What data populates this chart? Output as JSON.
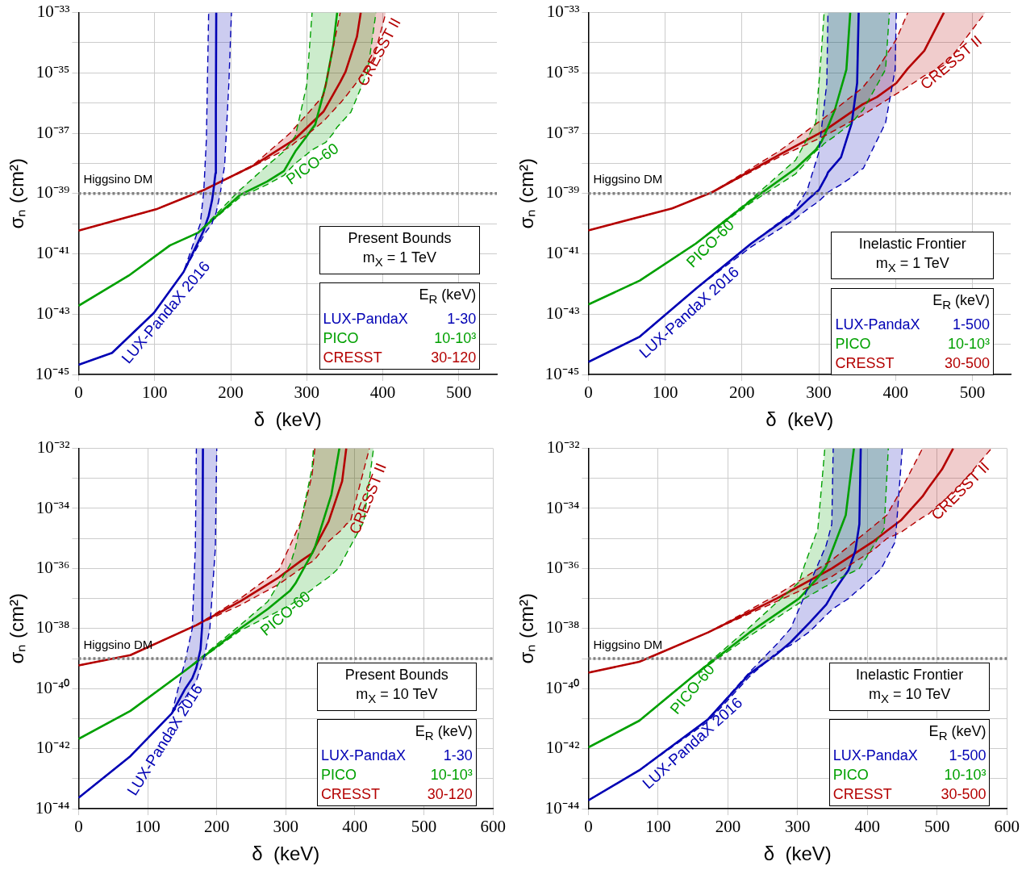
{
  "chart_data": [
    {
      "type": "line",
      "xlabel": "δ  (keV)",
      "ylabel": "σₙ (cm²)",
      "log": "y",
      "grid": true,
      "xlim": [
        0,
        550
      ],
      "xticks": [
        0,
        100,
        200,
        300,
        400,
        500
      ],
      "ylim": [
        1e-45,
        1e-33
      ],
      "yticks": [
        {
          "value": 1e-45,
          "label": "10⁻⁴⁵"
        },
        {
          "value": 1e-44,
          "label": null
        },
        {
          "value": 1e-43,
          "label": "10⁻⁴³"
        },
        {
          "value": 1e-42,
          "label": null
        },
        {
          "value": 1e-41,
          "label": "10⁻⁴¹"
        },
        {
          "value": 1e-40,
          "label": null
        },
        {
          "value": 1e-39,
          "label": "10⁻³⁹"
        },
        {
          "value": 1e-38,
          "label": null
        },
        {
          "value": 1e-37,
          "label": "10⁻³⁷"
        },
        {
          "value": 1e-36,
          "label": null
        },
        {
          "value": 1e-35,
          "label": "10⁻³⁵"
        },
        {
          "value": 1e-34,
          "label": null
        },
        {
          "value": 1e-33,
          "label": "10⁻³³"
        }
      ],
      "series": [
        {
          "name": "LUX-PandaX 2016",
          "color": "#0000b4",
          "x": [
            0,
            44,
            99,
            138,
            160,
            164.5,
            168,
            171,
            175.5,
            177,
            180,
            180.5,
            181,
            186.5,
            192,
            197.5,
            201
          ],
          "values": [
            2.1e-45,
            5.2e-45,
            1.1e-43,
            2.5e-42,
            3.4e-41,
            6e-41,
            1.1e-40,
            1.8e-40,
            6e-40,
            1.1e-39,
            4.7e-39,
            5e-37,
            1e-33,
            null,
            null,
            null,
            null
          ],
          "upper": [
            2.1e-45,
            5.2e-45,
            1.1e-43,
            2.5e-42,
            1e-40,
            1.1e-39,
            6e-38,
            1e-33,
            1e-33,
            1e-33,
            1e-33,
            1e-33,
            1e-33,
            1e-33,
            1e-33,
            1e-33,
            1e-33
          ],
          "lower": [
            2.1e-45,
            5.2e-45,
            1.1e-43,
            2.5e-42,
            2.5e-41,
            4e-41,
            5.6e-41,
            7e-41,
            1e-40,
            1.4e-40,
            2e-40,
            2.2e-40,
            2.4e-40,
            1.1e-39,
            8.5e-39,
            4e-36,
            1e-33
          ]
        },
        {
          "name": "PICO-60",
          "color": "#00a000",
          "x": [
            0,
            66,
            120,
            157,
            212,
            248,
            270,
            285,
            300,
            307,
            311,
            325,
            335,
            340,
            358,
            380,
            391
          ],
          "values": [
            1.9e-43,
            1.9e-42,
            1.9e-41,
            5e-41,
            8.9e-40,
            2.5e-39,
            5.6e-39,
            2.5e-38,
            8e-38,
            1.4e-37,
            1.9e-37,
            4e-36,
            8.5e-35,
            1e-33,
            null,
            null,
            null
          ],
          "upper": [
            1.9e-43,
            1.9e-42,
            1.9e-41,
            5e-41,
            1.3e-39,
            8.5e-39,
            2.5e-38,
            8e-38,
            4e-36,
            1e-33,
            1e-33,
            1e-33,
            1e-33,
            1e-33,
            1e-33,
            1e-33,
            1e-33
          ],
          "lower": [
            1.9e-43,
            1.9e-42,
            1.9e-41,
            5e-41,
            7.4e-40,
            2e-39,
            4e-39,
            1e-38,
            2e-38,
            2.8e-38,
            3.2e-38,
            5e-38,
            1e-37,
            1.6e-37,
            5e-37,
            1.1e-35,
            1e-33
          ]
        },
        {
          "name": "CRESST II",
          "color": "#b40000",
          "x": [
            0,
            102,
            164.5,
            230,
            278,
            285,
            303,
            322,
            344,
            351,
            366,
            371,
            388,
            404
          ],
          "values": [
            5.9e-41,
            3e-40,
            1.3e-39,
            8.5e-39,
            5e-38,
            6.6e-38,
            1.8e-37,
            5.2e-37,
            5e-36,
            1.1e-35,
            1.6e-34,
            1e-33,
            null,
            null
          ],
          "upper": [
            5.9e-41,
            3e-40,
            1.3e-39,
            9e-39,
            1e-37,
            1.6e-37,
            5e-37,
            1.8e-36,
            1e-33,
            1e-33,
            1e-33,
            1e-33,
            1e-33,
            1e-33
          ],
          "lower": [
            5.9e-41,
            3e-40,
            1.3e-39,
            8e-39,
            3.5e-38,
            5e-38,
            1e-37,
            2.5e-37,
            1e-36,
            1.6e-36,
            5e-36,
            8e-36,
            3e-35,
            1e-33
          ]
        },
        {
          "color": "#0000b4",
          "line_style": "dashed",
          "x": [
            0,
            44,
            99,
            138,
            160,
            164.5,
            168,
            171
          ],
          "values": [
            2.1e-45,
            5.2e-45,
            1.1e-43,
            2.5e-42,
            1e-40,
            1.1e-39,
            6e-38,
            1e-33
          ]
        },
        {
          "color": "#0000b4",
          "line_style": "dashed",
          "x": [
            0,
            44,
            99,
            138,
            160,
            164.5,
            168,
            171,
            175.5,
            177,
            180,
            180.5,
            181,
            186.5,
            192,
            197.5,
            201
          ],
          "values": [
            2.1e-45,
            5.2e-45,
            1.1e-43,
            2.5e-42,
            2.5e-41,
            4e-41,
            5.6e-41,
            7e-41,
            1e-40,
            1.4e-40,
            2e-40,
            2.2e-40,
            2.4e-40,
            1.1e-39,
            8.5e-39,
            4e-36,
            1e-33
          ]
        },
        {
          "color": "#00a000",
          "line_style": "dashed",
          "x": [
            0,
            66,
            120,
            157,
            212,
            248,
            270,
            285,
            300,
            307
          ],
          "values": [
            1.9e-43,
            1.9e-42,
            1.9e-41,
            5e-41,
            1.3e-39,
            8.5e-39,
            2.5e-38,
            8e-38,
            4e-36,
            1e-33
          ]
        },
        {
          "color": "#00a000",
          "line_style": "dashed",
          "x": [
            0,
            66,
            120,
            157,
            212,
            248,
            270,
            285,
            300,
            307,
            311,
            325,
            335,
            340,
            358,
            380,
            391
          ],
          "values": [
            1.9e-43,
            1.9e-42,
            1.9e-41,
            5e-41,
            7.4e-40,
            2e-39,
            4e-39,
            1e-38,
            2e-38,
            2.8e-38,
            3.2e-38,
            5e-38,
            1e-37,
            1.6e-37,
            5e-37,
            1.1e-35,
            1e-33
          ]
        },
        {
          "color": "#b40000",
          "line_style": "dashed",
          "x": [
            0,
            102,
            164.5,
            230,
            278,
            285,
            303,
            322,
            344
          ],
          "values": [
            5.9e-41,
            3e-40,
            1.3e-39,
            9e-39,
            1e-37,
            1.6e-37,
            5e-37,
            1.8e-36,
            1e-33
          ]
        },
        {
          "color": "#b40000",
          "line_style": "dashed",
          "x": [
            0,
            102,
            164.5,
            230,
            278,
            285,
            303,
            322,
            344,
            351,
            366,
            371,
            388,
            404
          ],
          "values": [
            5.9e-41,
            3e-40,
            1.3e-39,
            8e-39,
            3.5e-38,
            5e-38,
            1e-37,
            2.5e-37,
            1e-36,
            1.6e-36,
            5e-36,
            8e-36,
            3e-35,
            1e-33
          ]
        }
      ],
      "ref_lines": [
        {
          "axis": "y",
          "value": 1e-39,
          "label": "Higgsino DM",
          "color": "#808080",
          "line_style": "dotted"
        }
      ],
      "annotations": [
        "Present Bounds",
        "m$_{X}$ = 1 TeV",
        "E$_{R}$ (keV)",
        "LUX-PandaX",
        "1-30",
        "PICO",
        "10-10³",
        "CRESST",
        "30-120"
      ]
    },
    {
      "type": "line",
      "xlabel": "δ  (keV)",
      "ylabel": "σₙ (cm²)",
      "log": "y",
      "grid": true,
      "xlim": [
        0,
        550
      ],
      "xticks": [
        0,
        100,
        200,
        300,
        400,
        500
      ],
      "ylim": [
        1e-45,
        1e-33
      ],
      "yticks": [
        {
          "value": 1e-45,
          "label": "10⁻⁴⁵"
        },
        {
          "value": 1e-44,
          "label": null
        },
        {
          "value": 1e-43,
          "label": "10⁻⁴³"
        },
        {
          "value": 1e-42,
          "label": null
        },
        {
          "value": 1e-41,
          "label": "10⁻⁴¹"
        },
        {
          "value": 1e-40,
          "label": null
        },
        {
          "value": 1e-39,
          "label": "10⁻³⁹"
        },
        {
          "value": 1e-38,
          "label": null
        },
        {
          "value": 1e-37,
          "label": "10⁻³⁷"
        },
        {
          "value": 1e-36,
          "label": null
        },
        {
          "value": 1e-35,
          "label": "10⁻³⁵"
        },
        {
          "value": 1e-34,
          "label": null
        },
        {
          "value": 1e-33,
          "label": "10⁻³³"
        }
      ],
      "series": [
        {
          "name": "LUX-PandaX 2016",
          "color": "#0000b4",
          "x": [
            0,
            67,
            140,
            212,
            267,
            285,
            300,
            310.5,
            312,
            329,
            343,
            350,
            352,
            358,
            387,
            399.5,
            401
          ],
          "values": [
            2.6e-45,
            1.8e-44,
            7e-43,
            2.2e-41,
            2.2e-40,
            6e-40,
            1.3e-39,
            4e-39,
            5e-39,
            1.6e-38,
            2.2e-37,
            4.6e-36,
            1e-33,
            null,
            null,
            null,
            null
          ],
          "upper": [
            2.6e-45,
            1.8e-44,
            7e-43,
            2.2e-41,
            2.5e-40,
            1.3e-39,
            2.3e-38,
            4.6e-36,
            1e-33,
            1e-33,
            1e-33,
            1e-33,
            1e-33,
            1e-33,
            1e-33,
            1e-33,
            1e-33
          ],
          "lower": [
            2.6e-45,
            1.8e-44,
            7e-43,
            1.7e-41,
            1.3e-40,
            3e-40,
            5.5e-40,
            1e-39,
            1.1e-39,
            2e-39,
            3.5e-39,
            5e-39,
            5.5e-39,
            6.8e-39,
            2.2e-37,
            1.3e-35,
            1e-33
          ]
        },
        {
          "name": "PICO-60",
          "color": "#00a000",
          "x": [
            0,
            67,
            140,
            212,
            270,
            296,
            303,
            307,
            321,
            336,
            341,
            358,
            387,
            392
          ],
          "values": [
            2.1e-43,
            1.3e-42,
            2.2e-41,
            5.9e-40,
            6.8e-39,
            2.8e-38,
            5e-38,
            8e-38,
            6e-37,
            1.3e-35,
            1e-33,
            null,
            null,
            null
          ],
          "upper": [
            2.1e-43,
            1.3e-42,
            2.2e-41,
            6.5e-40,
            1.3e-38,
            2.2e-37,
            3.5e-35,
            1e-33,
            1e-33,
            1e-33,
            1e-33,
            1e-33,
            1e-33,
            1e-33
          ],
          "lower": [
            2.1e-43,
            1.3e-42,
            2.2e-41,
            5e-40,
            4.5e-39,
            2.5e-38,
            3.5e-38,
            4.5e-38,
            8e-38,
            1.6e-37,
            2e-37,
            6e-37,
            1.3e-35,
            1e-33
          ]
        },
        {
          "name": "CRESST II",
          "color": "#b40000",
          "x": [
            0,
            109,
            161,
            248,
            307,
            357,
            376,
            401,
            416,
            437.5,
            463,
            466,
            517
          ],
          "values": [
            6e-41,
            3.2e-40,
            1.1e-39,
            1.9e-38,
            1.2e-37,
            9e-37,
            1.6e-36,
            4.6e-36,
            1.4e-35,
            5.4e-35,
            1e-33,
            null,
            null
          ],
          "upper": [
            6e-41,
            3.2e-40,
            1.1e-39,
            2.5e-38,
            3.2e-37,
            3.2e-36,
            1.3e-35,
            1.3e-34,
            1e-33,
            1e-33,
            1e-33,
            1e-33,
            1e-33
          ],
          "lower": [
            6e-41,
            3.2e-40,
            1.1e-39,
            1.6e-38,
            8e-38,
            4e-37,
            8e-37,
            2e-36,
            3.5e-36,
            8e-36,
            1.8e-35,
            2e-35,
            1e-33
          ]
        },
        {
          "color": "#0000b4",
          "line_style": "dashed",
          "x": [
            0,
            67,
            140,
            212,
            267,
            285,
            300,
            310.5,
            312
          ],
          "values": [
            2.6e-45,
            1.8e-44,
            7e-43,
            2.2e-41,
            2.5e-40,
            1.3e-39,
            2.3e-38,
            4.6e-36,
            1e-33
          ]
        },
        {
          "color": "#0000b4",
          "line_style": "dashed",
          "x": [
            0,
            67,
            140,
            212,
            267,
            285,
            300,
            310.5,
            312,
            329,
            343,
            350,
            352,
            358,
            387,
            399.5,
            401
          ],
          "values": [
            2.6e-45,
            1.8e-44,
            7e-43,
            1.7e-41,
            1.3e-40,
            3e-40,
            5.5e-40,
            1e-39,
            1.1e-39,
            2e-39,
            3.5e-39,
            5e-39,
            5.5e-39,
            6.8e-39,
            2.2e-37,
            1.3e-35,
            1e-33
          ]
        },
        {
          "color": "#00a000",
          "line_style": "dashed",
          "x": [
            0,
            67,
            140,
            212,
            270,
            296,
            303,
            307
          ],
          "values": [
            2.1e-43,
            1.3e-42,
            2.2e-41,
            6.5e-40,
            1.3e-38,
            2.2e-37,
            3.5e-35,
            1e-33
          ]
        },
        {
          "color": "#00a000",
          "line_style": "dashed",
          "x": [
            0,
            67,
            140,
            212,
            270,
            296,
            303,
            307,
            321,
            336,
            341,
            358,
            387,
            392
          ],
          "values": [
            2.1e-43,
            1.3e-42,
            2.2e-41,
            5e-40,
            4.5e-39,
            2.5e-38,
            3.5e-38,
            4.5e-38,
            8e-38,
            1.6e-37,
            2e-37,
            6e-37,
            1.3e-35,
            1e-33
          ]
        },
        {
          "color": "#b40000",
          "line_style": "dashed",
          "x": [
            0,
            109,
            161,
            248,
            307,
            357,
            376,
            401,
            416
          ],
          "values": [
            6e-41,
            3.2e-40,
            1.1e-39,
            2.5e-38,
            3.2e-37,
            3.2e-36,
            1.3e-35,
            1.3e-34,
            1e-33
          ]
        },
        {
          "color": "#b40000",
          "line_style": "dashed",
          "x": [
            0,
            109,
            161,
            248,
            307,
            357,
            376,
            401,
            416,
            437.5,
            463,
            466,
            517
          ],
          "values": [
            6e-41,
            3.2e-40,
            1.1e-39,
            1.6e-38,
            8e-38,
            4e-37,
            8e-37,
            2e-36,
            3.5e-36,
            8e-36,
            1.8e-35,
            2e-35,
            1e-33
          ]
        }
      ],
      "ref_lines": [
        {
          "axis": "y",
          "value": 1e-39,
          "label": "Higgsino DM",
          "color": "#808080",
          "line_style": "dotted"
        }
      ],
      "annotations": [
        "Inelastic Frontier",
        "m$_{X}$ = 1 TeV",
        "E$_{R}$ (keV)",
        "LUX-PandaX",
        "1-500",
        "PICO",
        "10-10³",
        "CRESST",
        "30-500"
      ]
    },
    {
      "type": "line",
      "xlabel": "δ  (keV)",
      "ylabel": "σₙ (cm²)",
      "log": "y",
      "grid": true,
      "xlim": [
        0,
        600
      ],
      "xticks": [
        0,
        100,
        200,
        300,
        400,
        500,
        600
      ],
      "ylim": [
        1e-44,
        1e-32
      ],
      "yticks": [
        {
          "value": 1e-44,
          "label": "10⁻⁴⁴"
        },
        {
          "value": 1e-43,
          "label": null
        },
        {
          "value": 1e-42,
          "label": "10⁻⁴²"
        },
        {
          "value": 1e-41,
          "label": null
        },
        {
          "value": 1e-40,
          "label": "10⁻⁴⁰"
        },
        {
          "value": 1e-39,
          "label": null
        },
        {
          "value": 1e-38,
          "label": "10⁻³⁸"
        },
        {
          "value": 1e-37,
          "label": null
        },
        {
          "value": 1e-36,
          "label": "10⁻³⁶"
        },
        {
          "value": 1e-35,
          "label": null
        },
        {
          "value": 1e-34,
          "label": "10⁻³⁴"
        },
        {
          "value": 1e-33,
          "label": null
        },
        {
          "value": 1e-32,
          "label": "10⁻³²"
        }
      ],
      "series": [
        {
          "name": "LUX-PandaX 2016",
          "color": "#0000b4",
          "x": [
            0,
            75,
            135,
            154.5,
            164.5,
            169,
            170.5,
            176.5,
            179,
            180,
            182.5,
            190,
            198,
            200
          ],
          "values": [
            2.3e-44,
            5.6e-43,
            1.5e-41,
            1e-40,
            2.2e-40,
            4e-40,
            5e-40,
            2e-39,
            1.3e-38,
            1e-32,
            null,
            null,
            null,
            null
          ],
          "upper": [
            2.3e-44,
            5.6e-43,
            1.5e-41,
            8.9e-40,
            1e-38,
            5e-36,
            1e-32,
            1e-32,
            1e-32,
            1e-32,
            1e-32,
            1e-32,
            1e-32,
            1e-32
          ],
          "lower": [
            2.3e-44,
            5.6e-43,
            1.5e-41,
            5e-41,
            1.1e-40,
            1.6e-40,
            1.8e-40,
            5e-40,
            7e-40,
            8e-40,
            1.3e-39,
            1e-38,
            5e-36,
            1e-32
          ]
        },
        {
          "name": "PICO-60",
          "color": "#00a000",
          "x": [
            0,
            75,
            154.5,
            234,
            274,
            306,
            314,
            338,
            340,
            342,
            366,
            377.5,
            381.5,
            413,
            427
          ],
          "values": [
            2.1e-42,
            1.8e-41,
            4e-40,
            1e-38,
            4.5e-38,
            1.8e-37,
            3.2e-37,
            3.2e-36,
            4e-36,
            4.9e-36,
            2.9e-34,
            1e-32,
            null,
            null,
            null
          ],
          "upper": [
            2.1e-42,
            1.8e-41,
            4e-40,
            1.3e-38,
            8e-38,
            1.3e-36,
            4.9e-36,
            2.2e-33,
            1e-32,
            1e-32,
            1e-32,
            1e-32,
            1e-32,
            1e-32,
            1e-32
          ],
          "lower": [
            2.1e-42,
            1.8e-41,
            4e-40,
            8.5e-39,
            2.5e-38,
            6e-38,
            8e-38,
            2e-37,
            2.2e-37,
            2.4e-37,
            6e-37,
            1.1e-36,
            1.7e-36,
            3.7e-35,
            1e-32
          ]
        },
        {
          "name": "CRESST II",
          "color": "#b40000",
          "x": [
            0,
            75,
            170.5,
            234,
            290,
            322,
            338,
            342,
            362,
            381.5,
            387.5,
            393.5,
            421
          ],
          "values": [
            5.9e-40,
            1.3e-39,
            1.3e-38,
            8e-38,
            5.1e-37,
            1.8e-36,
            3.2e-36,
            5e-36,
            3.7e-35,
            8e-34,
            1e-32,
            null,
            null
          ],
          "upper": [
            5.9e-40,
            1.3e-39,
            1.3e-38,
            1e-37,
            9e-37,
            3.7e-35,
            1.3e-33,
            1e-32,
            1e-32,
            1e-32,
            1e-32,
            1e-32,
            1e-32
          ],
          "lower": [
            5.9e-40,
            1.3e-39,
            1.3e-38,
            6e-38,
            3e-37,
            1e-36,
            1.7e-36,
            2e-36,
            8e-36,
            2e-35,
            3e-35,
            3.7e-35,
            1e-32
          ]
        },
        {
          "color": "#0000b4",
          "line_style": "dashed",
          "x": [
            0,
            75,
            135,
            154.5,
            164.5,
            169,
            170.5
          ],
          "values": [
            2.3e-44,
            5.6e-43,
            1.5e-41,
            8.9e-40,
            1e-38,
            5e-36,
            1e-32
          ]
        },
        {
          "color": "#0000b4",
          "line_style": "dashed",
          "x": [
            0,
            75,
            135,
            154.5,
            164.5,
            169,
            170.5,
            176.5,
            179,
            180,
            182.5,
            190,
            198,
            200
          ],
          "values": [
            2.3e-44,
            5.6e-43,
            1.5e-41,
            5e-41,
            1.1e-40,
            1.6e-40,
            1.8e-40,
            5e-40,
            7e-40,
            8e-40,
            1.3e-39,
            1e-38,
            5e-36,
            1e-32
          ]
        },
        {
          "color": "#00a000",
          "line_style": "dashed",
          "x": [
            0,
            75,
            154.5,
            234,
            274,
            306,
            314,
            338,
            340
          ],
          "values": [
            2.1e-42,
            1.8e-41,
            4e-40,
            1.3e-38,
            8e-38,
            1.3e-36,
            4.9e-36,
            2.2e-33,
            1e-32
          ]
        },
        {
          "color": "#00a000",
          "line_style": "dashed",
          "x": [
            0,
            75,
            154.5,
            234,
            274,
            306,
            314,
            338,
            340,
            342,
            366,
            377.5,
            381.5,
            413,
            427
          ],
          "values": [
            2.1e-42,
            1.8e-41,
            4e-40,
            8.5e-39,
            2.5e-38,
            6e-38,
            8e-38,
            2e-37,
            2.2e-37,
            2.4e-37,
            6e-37,
            1.1e-36,
            1.7e-36,
            3.7e-35,
            1e-32
          ]
        },
        {
          "color": "#b40000",
          "line_style": "dashed",
          "x": [
            0,
            75,
            170.5,
            234,
            290,
            322,
            338,
            342
          ],
          "values": [
            5.9e-40,
            1.3e-39,
            1.3e-38,
            1e-37,
            9e-37,
            3.7e-35,
            1.3e-33,
            1e-32
          ]
        },
        {
          "color": "#b40000",
          "line_style": "dashed",
          "x": [
            0,
            75,
            170.5,
            234,
            290,
            322,
            338,
            342,
            362,
            381.5,
            387.5,
            393.5,
            421
          ],
          "values": [
            5.9e-40,
            1.3e-39,
            1.3e-38,
            6e-38,
            3e-37,
            1e-36,
            1.7e-36,
            2e-36,
            8e-36,
            2e-35,
            3e-35,
            3.7e-35,
            1e-32
          ]
        }
      ],
      "ref_lines": [
        {
          "axis": "y",
          "value": 1e-39,
          "label": "Higgsino DM",
          "color": "#808080",
          "line_style": "dotted"
        }
      ],
      "annotations": [
        "Present Bounds",
        "m$_{X}$ = 10 TeV",
        "E$_{R}$ (keV)",
        "LUX-PandaX",
        "1-30",
        "PICO",
        "10-10³",
        "CRESST",
        "30-120"
      ]
    },
    {
      "type": "line",
      "xlabel": "δ  (keV)",
      "ylabel": "σₙ (cm²)",
      "log": "y",
      "grid": true,
      "xlim": [
        0,
        600
      ],
      "xticks": [
        0,
        100,
        200,
        300,
        400,
        500,
        600
      ],
      "ylim": [
        1e-44,
        1e-32
      ],
      "yticks": [
        {
          "value": 1e-44,
          "label": "10⁻⁴⁴"
        },
        {
          "value": 1e-43,
          "label": null
        },
        {
          "value": 1e-42,
          "label": "10⁻⁴²"
        },
        {
          "value": 1e-41,
          "label": null
        },
        {
          "value": 1e-40,
          "label": "10⁻⁴⁰"
        },
        {
          "value": 1e-39,
          "label": null
        },
        {
          "value": 1e-38,
          "label": "10⁻³⁸"
        },
        {
          "value": 1e-37,
          "label": null
        },
        {
          "value": 1e-36,
          "label": "10⁻³⁶"
        },
        {
          "value": 1e-35,
          "label": null
        },
        {
          "value": 1e-34,
          "label": "10⁻³⁴"
        },
        {
          "value": 1e-33,
          "label": null
        },
        {
          "value": 1e-32,
          "label": "10⁻³²"
        }
      ],
      "series": [
        {
          "name": "LUX-PandaX 2016",
          "color": "#0000b4",
          "x": [
            0,
            73,
            171.6,
            231,
            270,
            290,
            317.5,
            341,
            349,
            351,
            373,
            382.6,
            388.5,
            390.5,
            420,
            440,
            450
          ],
          "values": [
            1.9e-44,
            1.9e-43,
            9.5e-42,
            3.1e-40,
            1.4e-39,
            3.5e-39,
            1.6e-38,
            6.3e-38,
            1.3e-37,
            1.6e-37,
            8.9e-37,
            3.8e-36,
            3e-35,
            1e-32,
            null,
            null,
            null
          ],
          "upper": [
            1.9e-44,
            1.9e-43,
            9.5e-42,
            3.5e-40,
            3e-39,
            1e-38,
            3.2e-37,
            6e-36,
            3e-35,
            1e-32,
            1e-32,
            1e-32,
            1e-32,
            1e-32,
            1e-32,
            1e-32,
            1e-32
          ],
          "lower": [
            1.9e-44,
            1.9e-43,
            8e-42,
            2.5e-40,
            1.6e-39,
            2.8e-39,
            8e-39,
            2.8e-38,
            4.2e-38,
            4.6e-38,
            1e-37,
            1.6e-37,
            2e-37,
            2.2e-37,
            1e-36,
            7.8e-36,
            1e-32
          ]
        },
        {
          "name": "PICO-60",
          "color": "#00a000",
          "x": [
            0,
            73,
            152,
            231,
            302,
            310,
            329,
            339,
            341,
            369,
            380.7,
            388.5,
            424,
            430
          ],
          "values": [
            1.1e-42,
            8.5e-42,
            2.8e-40,
            7.4e-39,
            1e-37,
            1.6e-37,
            5e-37,
            1e-36,
            1.2e-36,
            6e-35,
            1e-32,
            null,
            null,
            null
          ],
          "upper": [
            1.1e-42,
            8.5e-42,
            2.8e-40,
            1.1e-38,
            3.5e-37,
            1.3e-36,
            2.1e-35,
            1e-32,
            1e-32,
            1e-32,
            1e-32,
            1e-32,
            1e-32,
            1e-32
          ],
          "lower": [
            1.1e-42,
            8.5e-42,
            2.8e-40,
            5.6e-39,
            7e-38,
            1e-37,
            1.8e-37,
            2.5e-37,
            2.6e-37,
            6e-37,
            8e-37,
            1e-36,
            2.1e-35,
            1e-32
          ]
        },
        {
          "name": "CRESST II",
          "color": "#b40000",
          "x": [
            0,
            73,
            171.6,
            270,
            349,
            408,
            428,
            448,
            479,
            487,
            507,
            523,
            578
          ],
          "values": [
            3.4e-40,
            7.8e-40,
            7.4e-39,
            1e-37,
            1e-36,
            7.8e-36,
            1.8e-35,
            4e-35,
            2.5e-34,
            4.7e-34,
            2e-33,
            1e-32,
            null
          ],
          "upper": [
            3.4e-40,
            7.8e-40,
            7.4e-39,
            1.3e-37,
            1.9e-36,
            2.5e-35,
            6e-35,
            4e-34,
            1e-32,
            1e-32,
            1e-32,
            1e-32,
            1e-32
          ],
          "lower": [
            3.4e-40,
            7.8e-40,
            7.4e-39,
            8e-38,
            5.4e-37,
            4e-36,
            1e-35,
            1.6e-35,
            5e-35,
            6.3e-35,
            1.7e-34,
            3.2e-34,
            1e-32
          ]
        },
        {
          "color": "#0000b4",
          "line_style": "dashed",
          "x": [
            0,
            73,
            171.6,
            231,
            270,
            290,
            317.5,
            341,
            349,
            351
          ],
          "values": [
            1.9e-44,
            1.9e-43,
            9.5e-42,
            3.5e-40,
            3e-39,
            1e-38,
            3.2e-37,
            6e-36,
            3e-35,
            1e-32
          ]
        },
        {
          "color": "#0000b4",
          "line_style": "dashed",
          "x": [
            0,
            73,
            171.6,
            231,
            270,
            290,
            317.5,
            341,
            349,
            351,
            373,
            382.6,
            388.5,
            390.5,
            420,
            440,
            450
          ],
          "values": [
            1.9e-44,
            1.9e-43,
            8e-42,
            2.5e-40,
            1.6e-39,
            2.8e-39,
            8e-39,
            2.8e-38,
            4.2e-38,
            4.6e-38,
            1e-37,
            1.6e-37,
            2e-37,
            2.2e-37,
            1e-36,
            7.8e-36,
            1e-32
          ]
        },
        {
          "color": "#00a000",
          "line_style": "dashed",
          "x": [
            0,
            73,
            152,
            231,
            302,
            310,
            329,
            339
          ],
          "values": [
            1.1e-42,
            8.5e-42,
            2.8e-40,
            1.1e-38,
            3.5e-37,
            1.3e-36,
            2.1e-35,
            1e-32
          ]
        },
        {
          "color": "#00a000",
          "line_style": "dashed",
          "x": [
            0,
            73,
            152,
            231,
            302,
            310,
            329,
            339,
            341,
            369,
            380.7,
            388.5,
            424,
            430
          ],
          "values": [
            1.1e-42,
            8.5e-42,
            2.8e-40,
            5.6e-39,
            7e-38,
            1e-37,
            1.8e-37,
            2.5e-37,
            2.6e-37,
            6e-37,
            8e-37,
            1e-36,
            2.1e-35,
            1e-32
          ]
        },
        {
          "color": "#b40000",
          "line_style": "dashed",
          "x": [
            0,
            73,
            171.6,
            270,
            349,
            408,
            428,
            448,
            479
          ],
          "values": [
            3.4e-40,
            7.8e-40,
            7.4e-39,
            1.3e-37,
            1.9e-36,
            2.5e-35,
            6e-35,
            4e-34,
            1e-32
          ]
        },
        {
          "color": "#b40000",
          "line_style": "dashed",
          "x": [
            0,
            73,
            171.6,
            270,
            349,
            408,
            428,
            448,
            479,
            487,
            507,
            523,
            578
          ],
          "values": [
            3.4e-40,
            7.8e-40,
            7.4e-39,
            8e-38,
            5.4e-37,
            4e-36,
            1e-35,
            1.6e-35,
            5e-35,
            6.3e-35,
            1.7e-34,
            3.2e-34,
            1e-32
          ]
        }
      ],
      "ref_lines": [
        {
          "axis": "y",
          "value": 1e-39,
          "label": "Higgsino DM",
          "color": "#808080",
          "line_style": "dotted"
        }
      ],
      "annotations": [
        "Inelastic Frontier",
        "m$_{X}$ = 10 TeV",
        "E$_{R}$ (keV)",
        "LUX-PandaX",
        "1-500",
        "PICO",
        "10-10³",
        "CRESST",
        "30-500"
      ]
    }
  ]
}
